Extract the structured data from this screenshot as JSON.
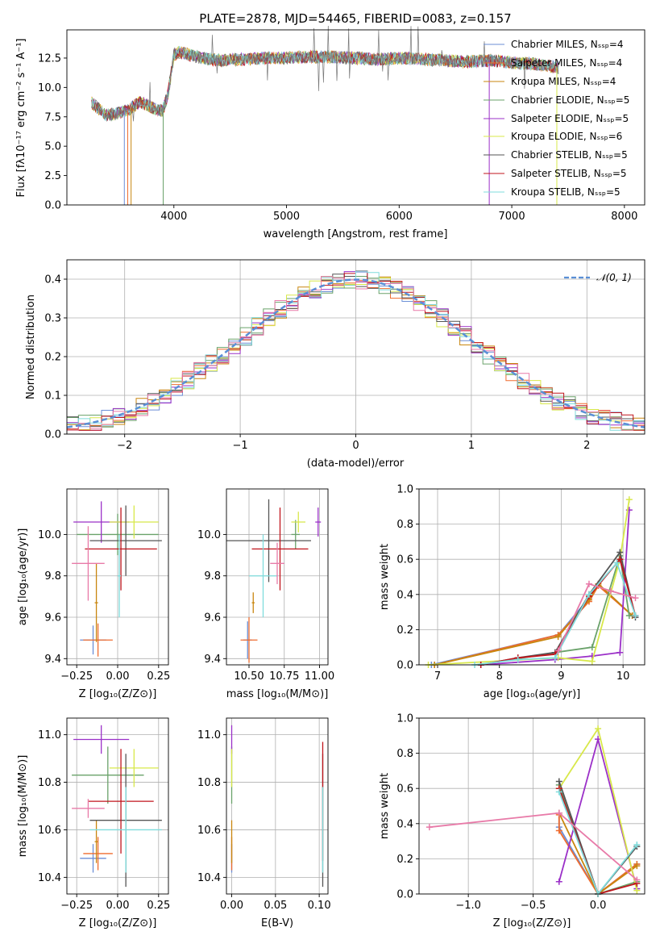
{
  "colors": {
    "Chabrier MILES": "#6b8ed6",
    "Salpeter MILES": "#ef6c2f",
    "Kroupa MILES": "#c8860f",
    "Chabrier ELODIE": "#6aa26a",
    "Salpeter ELODIE": "#9b30c8",
    "Kroupa ELODIE": "#d8e84a",
    "Chabrier STELIB": "#555555",
    "Salpeter STELIB": "#c0141c",
    "Kroupa STELIB": "#7fdcdc",
    "extra pink": "#e87aa8",
    "normal": "#5a8fd6"
  },
  "chart_data": [
    {
      "id": "spectrum",
      "type": "line",
      "title": "PLATE=2878, MJD=54465, FIBERID=0083, z=0.157",
      "xlabel": "wavelength [Angstrom, rest frame]",
      "ylabel": "Flux [fλ10⁻¹⁷ erg cm⁻² s⁻¹ A⁻¹]",
      "xlim": [
        3050,
        8180
      ],
      "ylim": [
        0,
        14.9
      ],
      "xticks": [
        "4000",
        "5000",
        "6000",
        "7000",
        "8000"
      ],
      "yticks": [
        "0.0",
        "2.5",
        "5.0",
        "7.5",
        "10.0",
        "12.5"
      ],
      "legend_position": "top-right",
      "series": [
        {
          "name": "Chabrier MILES, Nₛₛₚ=4"
        },
        {
          "name": "Salpeter MILES, Nₛₛₚ=4"
        },
        {
          "name": "Kroupa MILES, Nₛₛₚ=4"
        },
        {
          "name": "Chabrier ELODIE, Nₛₛₚ=5"
        },
        {
          "name": "Salpeter ELODIE, Nₛₛₚ=5"
        },
        {
          "name": "Kroupa ELODIE, Nₛₛₚ=6"
        },
        {
          "name": "Chabrier STELIB, Nₛₛₚ=5"
        },
        {
          "name": "Salpeter STELIB, Nₛₛₚ=5"
        },
        {
          "name": "Kroupa STELIB, Nₛₛₚ=5"
        }
      ],
      "envelope": {
        "x": [
          3270,
          3400,
          3500,
          3600,
          3700,
          3800,
          3900,
          3950,
          4000,
          4050,
          4200,
          4400,
          4600,
          4800,
          5000,
          5200,
          5400,
          5600,
          5800,
          6000,
          6200,
          6400,
          6600,
          6800,
          7000,
          7200,
          7400
        ],
        "y": [
          8.7,
          7.6,
          7.8,
          8.1,
          8.8,
          8.3,
          8.0,
          9.5,
          12.8,
          13.0,
          12.6,
          12.3,
          12.4,
          12.5,
          12.5,
          12.6,
          12.6,
          12.5,
          12.4,
          12.5,
          12.4,
          12.3,
          12.2,
          12.3,
          12.1,
          12.0,
          11.7
        ]
      },
      "dropouts": [
        3560,
        3590,
        3620,
        3905,
        6800,
        7400
      ]
    },
    {
      "id": "residuals",
      "type": "histogram",
      "xlabel": "(data-model)/error",
      "ylabel": "Normed distribution",
      "xlim": [
        -2.5,
        2.5
      ],
      "ylim": [
        0,
        0.45
      ],
      "xticks": [
        "−2",
        "−1",
        "0",
        "1",
        "2"
      ],
      "yticks": [
        "0.0",
        "0.1",
        "0.2",
        "0.3",
        "0.4"
      ],
      "grid": true,
      "legend": "𝒩(0, 1)",
      "legend_position": "top-right",
      "bin_width": 0.1,
      "normal": {
        "mu": 0,
        "sigma": 1
      }
    },
    {
      "id": "age_vs_Z",
      "type": "errorbar",
      "xlabel": "Z [log₁₀(Z/Z⊙)]",
      "ylabel": "age  [log₁₀(age/yr)]",
      "xlim": [
        -0.31,
        0.31
      ],
      "ylim": [
        9.37,
        10.22
      ],
      "xticks": [
        "−0.25",
        "0.00",
        "0.25"
      ],
      "yticks": [
        "9.4",
        "9.6",
        "9.8",
        "10.0"
      ],
      "points": [
        {
          "c": "#6b8ed6",
          "x": -0.15,
          "xe": 0.08,
          "y": 9.49,
          "ye": 0.07
        },
        {
          "c": "#ef6c2f",
          "x": -0.12,
          "xe": 0.09,
          "y": 9.49,
          "ye": 0.08
        },
        {
          "c": "#c8860f",
          "x": -0.13,
          "xe": 0.01,
          "y": 9.67,
          "ye": 0.19
        },
        {
          "c": "#6aa26a",
          "x": 0.0,
          "xe": 0.25,
          "y": 10.0,
          "ye": 0.1
        },
        {
          "c": "#9b30c8",
          "x": -0.1,
          "xe": 0.17,
          "y": 10.06,
          "ye": 0.1
        },
        {
          "c": "#d8e84a",
          "x": 0.1,
          "xe": 0.15,
          "y": 10.06,
          "ye": 0.08
        },
        {
          "c": "#555555",
          "x": 0.05,
          "xe": 0.22,
          "y": 9.97,
          "ye": 0.17
        },
        {
          "c": "#c0141c",
          "x": 0.02,
          "xe": 0.22,
          "y": 9.93,
          "ye": 0.2
        },
        {
          "c": "#7fdcdc",
          "x": 0.01,
          "xe": 0.01,
          "y": 9.8,
          "ye": 0.2
        },
        {
          "c": "#e87aa8",
          "x": -0.18,
          "xe": 0.1,
          "y": 9.86,
          "ye": 0.18
        }
      ]
    },
    {
      "id": "age_vs_mass",
      "type": "errorbar",
      "xlabel": "mass [log₁₀(M/M⊙)]",
      "xlim": [
        10.34,
        11.06
      ],
      "ylim": [
        9.37,
        10.22
      ],
      "xticks": [
        "10.50",
        "10.75",
        "11.00"
      ],
      "yticks": [
        "9.4",
        "9.6",
        "9.8",
        "10.0"
      ],
      "points": [
        {
          "c": "#6b8ed6",
          "x": 10.49,
          "xe": 0.03,
          "y": 9.49,
          "ye": 0.09
        },
        {
          "c": "#ef6c2f",
          "x": 10.5,
          "xe": 0.06,
          "y": 9.49,
          "ye": 0.11
        },
        {
          "c": "#c8860f",
          "x": 10.53,
          "xe": 0.01,
          "y": 9.67,
          "ye": 0.05
        },
        {
          "c": "#6aa26a",
          "x": 10.83,
          "xe": 0.03,
          "y": 10.0,
          "ye": 0.07
        },
        {
          "c": "#9b30c8",
          "x": 10.99,
          "xe": 0.02,
          "y": 10.06,
          "ye": 0.07
        },
        {
          "c": "#d8e84a",
          "x": 10.85,
          "xe": 0.05,
          "y": 10.06,
          "ye": 0.05
        },
        {
          "c": "#555555",
          "x": 10.64,
          "xe": 0.3,
          "y": 9.97,
          "ye": 0.2
        },
        {
          "c": "#c0141c",
          "x": 10.72,
          "xe": 0.2,
          "y": 9.93,
          "ye": 0.2
        },
        {
          "c": "#7fdcdc",
          "x": 10.6,
          "xe": 0.1,
          "y": 9.8,
          "ye": 0.2
        },
        {
          "c": "#e87aa8",
          "x": 10.7,
          "xe": 0.05,
          "y": 9.86,
          "ye": 0.1
        }
      ]
    },
    {
      "id": "mass_weight_vs_age",
      "type": "line",
      "xlabel": "age  [log₁₀(age/yr)]",
      "ylabel": "mass weight",
      "xlim": [
        6.7,
        10.35
      ],
      "ylim": [
        0,
        1.0
      ],
      "xticks": [
        "7",
        "8",
        "9",
        "10"
      ],
      "yticks": [
        "0.0",
        "0.2",
        "0.4",
        "0.6",
        "0.8",
        "1.0"
      ],
      "grid": true,
      "series": [
        {
          "c": "#6b8ed6",
          "x": [
            6.9,
            8.95,
            9.45,
            9.6,
            10.15
          ],
          "y": [
            0.0,
            0.17,
            0.38,
            0.46,
            0.28
          ]
        },
        {
          "c": "#ef6c2f",
          "x": [
            6.95,
            8.95,
            9.45,
            9.6,
            10.15
          ],
          "y": [
            0.0,
            0.17,
            0.36,
            0.45,
            0.28
          ]
        },
        {
          "c": "#c8860f",
          "x": [
            6.95,
            8.95,
            9.45,
            9.6,
            10.15
          ],
          "y": [
            0.0,
            0.16,
            0.37,
            0.46,
            0.28
          ]
        },
        {
          "c": "#6aa26a",
          "x": [
            7.7,
            8.9,
            9.5,
            9.95,
            10.1
          ],
          "y": [
            0.0,
            0.07,
            0.1,
            0.62,
            0.28
          ]
        },
        {
          "c": "#9b30c8",
          "x": [
            7.7,
            8.9,
            9.5,
            9.95,
            10.1
          ],
          "y": [
            0.0,
            0.03,
            0.05,
            0.07,
            0.88
          ]
        },
        {
          "c": "#d8e84a",
          "x": [
            6.85,
            8.95,
            9.5,
            9.95,
            10.1
          ],
          "y": [
            0.0,
            0.04,
            0.02,
            0.6,
            0.94
          ]
        },
        {
          "c": "#555555",
          "x": [
            7.7,
            8.3,
            8.9,
            9.45,
            9.95,
            10.2
          ],
          "y": [
            0.0,
            0.04,
            0.07,
            0.4,
            0.64,
            0.27
          ]
        },
        {
          "c": "#c0141c",
          "x": [
            7.7,
            8.3,
            8.9,
            9.45,
            9.95,
            10.2
          ],
          "y": [
            0.0,
            0.04,
            0.06,
            0.39,
            0.6,
            0.28
          ]
        },
        {
          "c": "#7fdcdc",
          "x": [
            7.6,
            8.3,
            8.9,
            9.45,
            9.9,
            10.2
          ],
          "y": [
            0.0,
            0.03,
            0.04,
            0.4,
            0.58,
            0.28
          ]
        },
        {
          "c": "#e87aa8",
          "x": [
            8.95,
            9.45,
            9.8,
            10.2
          ],
          "y": [
            0.08,
            0.46,
            0.42,
            0.38
          ]
        }
      ]
    },
    {
      "id": "mass_vs_Z",
      "type": "errorbar",
      "xlabel": "Z [log₁₀(Z/Z⊙)]",
      "ylabel": "mass [log₁₀(M/M⊙)]",
      "xlim": [
        -0.31,
        0.31
      ],
      "ylim": [
        10.33,
        11.07
      ],
      "xticks": [
        "−0.25",
        "0.00",
        "0.25"
      ],
      "yticks": [
        "10.4",
        "10.6",
        "10.8",
        "11.0"
      ],
      "points": [
        {
          "c": "#6b8ed6",
          "x": -0.15,
          "xe": 0.08,
          "y": 10.48,
          "ye": 0.06
        },
        {
          "c": "#ef6c2f",
          "x": -0.12,
          "xe": 0.09,
          "y": 10.5,
          "ye": 0.07
        },
        {
          "c": "#c8860f",
          "x": -0.13,
          "xe": 0.01,
          "y": 10.55,
          "ye": 0.09
        },
        {
          "c": "#6aa26a",
          "x": -0.06,
          "xe": 0.22,
          "y": 10.83,
          "ye": 0.12
        },
        {
          "c": "#9b30c8",
          "x": -0.1,
          "xe": 0.17,
          "y": 10.98,
          "ye": 0.06
        },
        {
          "c": "#d8e84a",
          "x": 0.1,
          "xe": 0.15,
          "y": 10.86,
          "ye": 0.08
        },
        {
          "c": "#555555",
          "x": 0.05,
          "xe": 0.22,
          "y": 10.64,
          "ye": 0.28
        },
        {
          "c": "#c0141c",
          "x": 0.02,
          "xe": 0.2,
          "y": 10.72,
          "ye": 0.22
        },
        {
          "c": "#7fdcdc",
          "x": 0.05,
          "xe": 0.22,
          "y": 10.6,
          "ye": 0.18
        },
        {
          "c": "#e87aa8",
          "x": -0.18,
          "xe": 0.1,
          "y": 10.69,
          "ye": 0.04
        }
      ]
    },
    {
      "id": "mass_vs_ebv",
      "type": "errorbar",
      "xlabel": "E(B-V)",
      "xlim": [
        -0.006,
        0.11
      ],
      "ylim": [
        10.33,
        11.07
      ],
      "xticks": [
        "0.00",
        "0.05",
        "0.10"
      ],
      "yticks": [
        "10.4",
        "10.6",
        "10.8",
        "11.0"
      ],
      "points": [
        {
          "c": "#6b8ed6",
          "x": 0.0,
          "xe": 0,
          "y": 10.48,
          "ye": 0.06
        },
        {
          "c": "#ef6c2f",
          "x": 0.0,
          "xe": 0,
          "y": 10.5,
          "ye": 0.07
        },
        {
          "c": "#c8860f",
          "x": 0.0,
          "xe": 0,
          "y": 10.55,
          "ye": 0.09
        },
        {
          "c": "#6aa26a",
          "x": 0.0,
          "xe": 0,
          "y": 10.83,
          "ye": 0.12
        },
        {
          "c": "#9b30c8",
          "x": 0.0,
          "xe": 0,
          "y": 10.98,
          "ye": 0.06
        },
        {
          "c": "#d8e84a",
          "x": 0.0,
          "xe": 0,
          "y": 10.86,
          "ye": 0.08
        },
        {
          "c": "#555555",
          "x": 0.104,
          "xe": 0,
          "y": 10.64,
          "ye": 0.28
        },
        {
          "c": "#c0141c",
          "x": 0.104,
          "xe": 0,
          "y": 10.72,
          "ye": 0.25
        },
        {
          "c": "#7fdcdc",
          "x": 0.104,
          "xe": 0,
          "y": 10.6,
          "ye": 0.18
        }
      ]
    },
    {
      "id": "mass_weight_vs_Z",
      "type": "line",
      "xlabel": "Z [log₁₀(Z/Z⊙)]",
      "ylabel": "mass weight",
      "xlim": [
        -1.38,
        0.36
      ],
      "ylim": [
        0,
        1.0
      ],
      "xticks": [
        "−1.0",
        "−0.5",
        "0.0"
      ],
      "yticks": [
        "0.0",
        "0.2",
        "0.4",
        "0.6",
        "0.8",
        "1.0"
      ],
      "grid": true,
      "series": [
        {
          "c": "#6b8ed6",
          "x": [
            -0.3,
            -0.3,
            0.0,
            0.3
          ],
          "y": [
            0.46,
            0.38,
            0.0,
            0.17
          ]
        },
        {
          "c": "#ef6c2f",
          "x": [
            -0.3,
            -0.3,
            0.0,
            0.3
          ],
          "y": [
            0.45,
            0.36,
            0.0,
            0.17
          ]
        },
        {
          "c": "#c8860f",
          "x": [
            -0.3,
            0.0,
            0.3
          ],
          "y": [
            0.46,
            0.0,
            0.16
          ]
        },
        {
          "c": "#6aa26a",
          "x": [
            -0.3,
            0.0,
            0.3
          ],
          "y": [
            0.62,
            0.0,
            0.07
          ]
        },
        {
          "c": "#9b30c8",
          "x": [
            -0.3,
            0.0,
            0.3
          ],
          "y": [
            0.07,
            0.88,
            0.03
          ]
        },
        {
          "c": "#d8e84a",
          "x": [
            -0.3,
            0.0,
            0.3
          ],
          "y": [
            0.6,
            0.94,
            0.02
          ]
        },
        {
          "c": "#555555",
          "x": [
            -0.3,
            0.0,
            0.3
          ],
          "y": [
            0.64,
            0.0,
            0.27
          ]
        },
        {
          "c": "#c0141c",
          "x": [
            -0.3,
            0.0,
            0.3
          ],
          "y": [
            0.6,
            0.0,
            0.06
          ]
        },
        {
          "c": "#7fdcdc",
          "x": [
            -0.3,
            0.0,
            0.3
          ],
          "y": [
            0.58,
            0.0,
            0.28
          ]
        },
        {
          "c": "#e87aa8",
          "x": [
            -1.3,
            -0.3,
            0.3
          ],
          "y": [
            0.38,
            0.46,
            0.08
          ]
        }
      ]
    }
  ]
}
